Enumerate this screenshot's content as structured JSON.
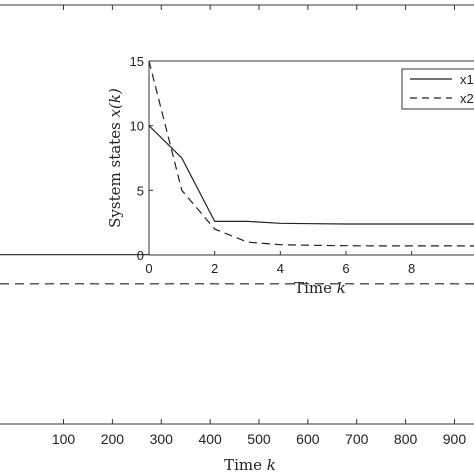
{
  "chart_data": [
    {
      "type": "line",
      "xlabel_text": "Time",
      "xlabel_var": "k",
      "x_ticks": [
        "100",
        "200",
        "300",
        "400",
        "500",
        "600",
        "700",
        "800",
        "900"
      ],
      "xlim": [
        -30,
        940
      ],
      "ylim": [
        -7.5,
        17
      ],
      "series": [
        {
          "name": "x1",
          "style": "solid",
          "x": [
            -30,
            940
          ],
          "y": [
            2.4,
            2.4
          ]
        },
        {
          "name": "x2",
          "style": "dashed",
          "x": [
            -30,
            940
          ],
          "y": [
            0.7,
            0.7
          ]
        }
      ]
    },
    {
      "type": "line",
      "xlabel_text": "Time",
      "xlabel_var": "k",
      "ylabel_text": "System states",
      "ylabel_var": "x(k)",
      "x_ticks": [
        "0",
        "2",
        "4",
        "6",
        "8"
      ],
      "y_ticks": [
        "0",
        "5",
        "10",
        "15"
      ],
      "xlim": [
        0,
        9.9
      ],
      "ylim": [
        0,
        15
      ],
      "legend": {
        "placement": "top-right",
        "entries": [
          "x1",
          "x2"
        ]
      },
      "series": [
        {
          "name": "x1",
          "style": "solid",
          "x": [
            0,
            1,
            2,
            3,
            4,
            5,
            6,
            7,
            8,
            9,
            10
          ],
          "y": [
            10,
            7.5,
            2.6,
            2.6,
            2.45,
            2.42,
            2.4,
            2.4,
            2.4,
            2.4,
            2.4
          ]
        },
        {
          "name": "x2",
          "style": "dashed",
          "x": [
            0,
            1,
            2,
            3,
            4,
            5,
            6,
            7,
            8,
            9,
            10
          ],
          "y": [
            15,
            5,
            2.0,
            1.0,
            0.8,
            0.75,
            0.72,
            0.7,
            0.7,
            0.7,
            0.7
          ]
        }
      ]
    }
  ],
  "colors": {
    "line": "#222222",
    "axis": "#333333",
    "background": "#ffffff"
  }
}
